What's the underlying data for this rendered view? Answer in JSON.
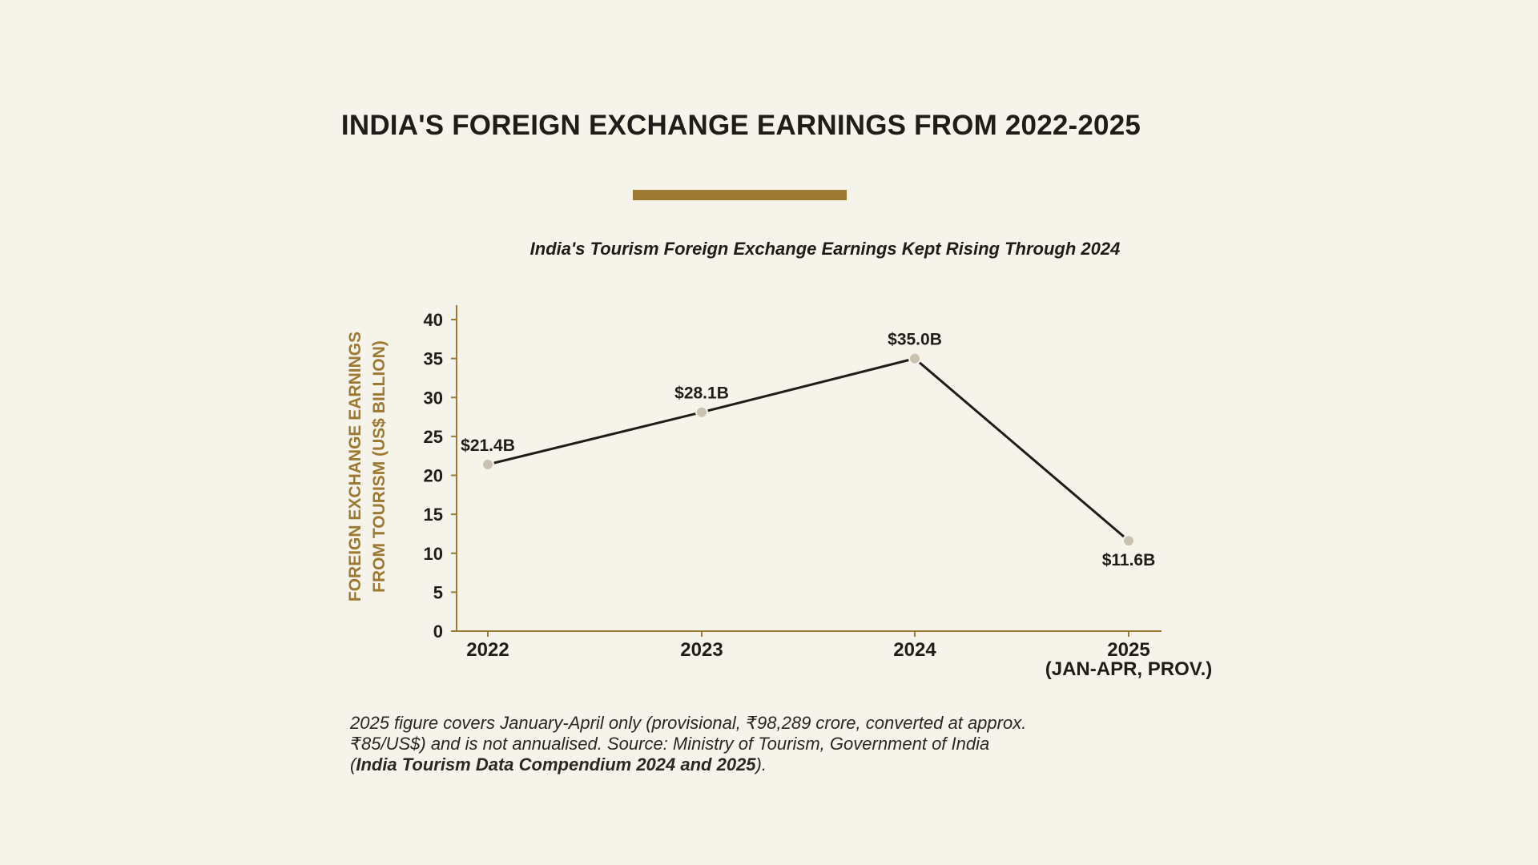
{
  "title": "INDIA'S FOREIGN EXCHANGE EARNINGS FROM 2022-2025",
  "colors": {
    "background": "#f6f3ea",
    "accent": "#9c7a32",
    "line": "#1f1d1a",
    "marker": "#c9c2b0",
    "text": "#1f1d1a"
  },
  "chart_data": {
    "type": "line",
    "title": "India's Tourism Foreign Exchange Earnings Kept Rising Through 2024",
    "ylabel": "FOREIGN EXCHANGE EARNINGS FROM TOURISM (US$ BILLION)",
    "xlabel": "",
    "ylim": [
      0,
      40
    ],
    "yticks": [
      0,
      5,
      10,
      15,
      20,
      25,
      30,
      35,
      40
    ],
    "categories": [
      {
        "label": "2022",
        "sublabel": ""
      },
      {
        "label": "2023",
        "sublabel": ""
      },
      {
        "label": "2024",
        "sublabel": ""
      },
      {
        "label": "2025",
        "sublabel": "(JAN-APR, PROV.)"
      }
    ],
    "series": [
      {
        "values": [
          21.4,
          28.1,
          35.0,
          11.6
        ],
        "data_labels": [
          "$21.4B",
          "$28.1B",
          "$35.0B",
          "$11.6B"
        ],
        "label_positions": [
          "above",
          "above",
          "above",
          "below"
        ]
      }
    ],
    "grid": false,
    "legend": "none"
  },
  "note": {
    "part1": "2025 figure covers January-April only (provisional, ₹98,289 crore, converted at approx. ₹85/US$) and is not annualised. Source: Ministry of Tourism, Government of India (",
    "source_title": "India Tourism Data Compendium 2024 and 2025",
    "part2": ")."
  }
}
